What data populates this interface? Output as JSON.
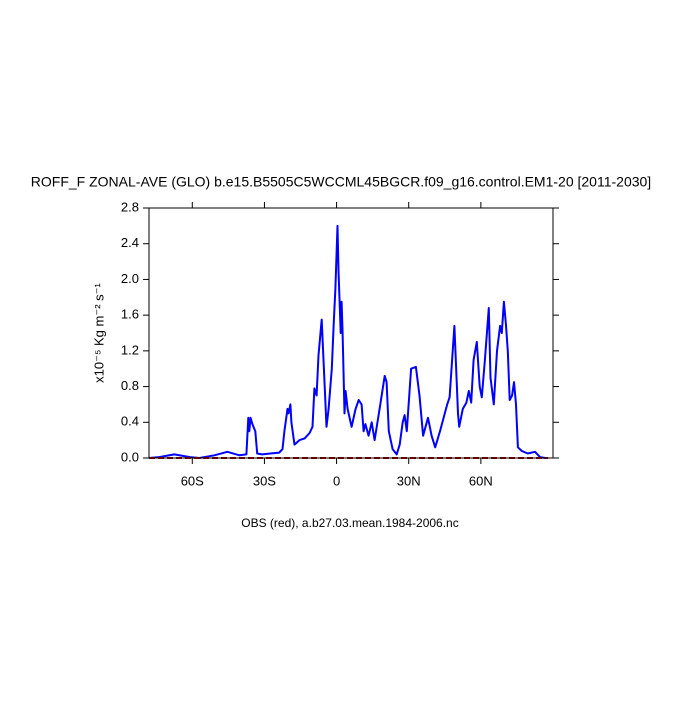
{
  "chart_data": {
    "type": "line",
    "title": "ROFF_F ZONAL-AVE (GLO) b.e15.B5505C5WCCML45BGCR.f09_g16.control.EM1-20 [2011-2030]",
    "ylabel": "x10⁻⁵ Kg m⁻² s⁻¹",
    "annotation": "OBS (red), a.b27.03.mean.1984-2006.nc",
    "xlim": [
      -78,
      90
    ],
    "ylim": [
      0,
      2.8
    ],
    "xticks": [
      {
        "value": -60,
        "label": "60S"
      },
      {
        "value": -30,
        "label": "30S"
      },
      0,
      {
        "value": 30,
        "label": "30N"
      },
      {
        "value": 60,
        "label": "60N"
      }
    ],
    "yticks": [
      {
        "value": 0,
        "label": "0.0"
      },
      0.4,
      0.8,
      1.2,
      1.6,
      {
        "value": 2,
        "label": "2.0"
      },
      2.4,
      2.8
    ],
    "series": [
      {
        "color": "#0000ff",
        "x": [
          -78,
          -73.75,
          -67.5,
          -61,
          -57,
          -50.8,
          -45.4,
          -40.4,
          -37.5,
          -36.7,
          -36.3,
          -35.8,
          -35,
          -33.8,
          -33,
          -31,
          -27.5,
          -23.8,
          -22.5,
          -21.7,
          -20.4,
          -20,
          -19.2,
          -18.8,
          -17.5,
          -15.4,
          -13.3,
          -11.2,
          -10,
          -9.2,
          -8.3,
          -7.5,
          -6.2,
          -4.2,
          -3.3,
          -2,
          -1.2,
          -0.5,
          0.4,
          0.8,
          1.7,
          2.1,
          2.5,
          3.3,
          3.75,
          4.6,
          6.25,
          7.9,
          9.2,
          10.4,
          11.25,
          12,
          13.3,
          14.6,
          15.8,
          17.9,
          20,
          20.8,
          21.7,
          23.3,
          25,
          26.25,
          27.5,
          28.3,
          29.2,
          31,
          33,
          34.5,
          36,
          38,
          39.5,
          41,
          43,
          46,
          47,
          49,
          50.5,
          51,
          52.5,
          54,
          55,
          56,
          57,
          58.3,
          59.5,
          60.4,
          61.7,
          63.3,
          64,
          65.4,
          66.7,
          68,
          68.7,
          69.6,
          70.4,
          71.2,
          72,
          73,
          73.8,
          74.6,
          75.4,
          77,
          79.5,
          82.5,
          84.6,
          86.7
        ],
        "values": [
          0,
          0.01,
          0.04,
          0.01,
          0,
          0.03,
          0.07,
          0.03,
          0.04,
          0.45,
          0.3,
          0.45,
          0.38,
          0.3,
          0.05,
          0.04,
          0.05,
          0.06,
          0.1,
          0.3,
          0.55,
          0.5,
          0.6,
          0.4,
          0.15,
          0.2,
          0.22,
          0.28,
          0.35,
          0.78,
          0.7,
          1.15,
          1.55,
          0.35,
          0.55,
          1.0,
          1.5,
          1.9,
          2.6,
          2.1,
          1.4,
          1.75,
          1.4,
          0.5,
          0.75,
          0.55,
          0.35,
          0.55,
          0.65,
          0.6,
          0.3,
          0.38,
          0.25,
          0.4,
          0.2,
          0.55,
          0.92,
          0.85,
          0.3,
          0.1,
          0.04,
          0.15,
          0.4,
          0.48,
          0.3,
          1.0,
          1.02,
          0.7,
          0.25,
          0.45,
          0.25,
          0.12,
          0.3,
          0.6,
          0.68,
          1.48,
          0.5,
          0.35,
          0.55,
          0.62,
          0.75,
          0.62,
          1.1,
          1.3,
          0.8,
          0.68,
          1.1,
          1.68,
          0.9,
          0.6,
          1.2,
          1.48,
          1.4,
          1.75,
          1.5,
          1.2,
          0.65,
          0.7,
          0.85,
          0.6,
          0.12,
          0.08,
          0.05,
          0.07,
          0.01,
          0
        ]
      },
      {
        "color": "#c00000",
        "dashed": true,
        "x": [
          -78,
          88
        ],
        "values": [
          0,
          0
        ]
      }
    ]
  }
}
